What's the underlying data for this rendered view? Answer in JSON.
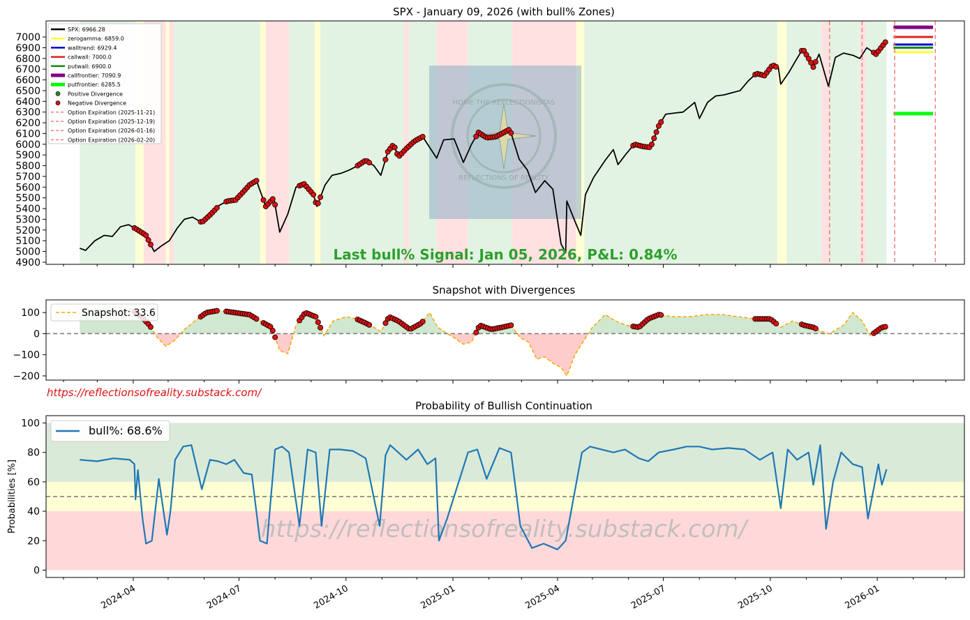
{
  "chart_data": [
    {
      "id": "spx",
      "type": "line",
      "title": "SPX - January 09, 2026 (with bull% Zones)",
      "ylim": [
        4880,
        7150
      ],
      "y_ticks": [
        4900,
        5000,
        5100,
        5200,
        5300,
        5400,
        5500,
        5600,
        5700,
        5800,
        5900,
        6000,
        6100,
        6200,
        6300,
        6400,
        6500,
        6600,
        6700,
        6800,
        6900,
        7000
      ],
      "series": [
        {
          "name": "SPX:  6966.28",
          "color": "#000000",
          "x": [
            "2024-02-15",
            "2024-02-20",
            "2024-02-28",
            "2024-03-07",
            "2024-03-14",
            "2024-03-21",
            "2024-03-28",
            "2024-04-05",
            "2024-04-12",
            "2024-04-19",
            "2024-04-25",
            "2024-05-02",
            "2024-05-09",
            "2024-05-15",
            "2024-05-22",
            "2024-05-30",
            "2024-06-07",
            "2024-06-14",
            "2024-06-21",
            "2024-06-28",
            "2024-07-05",
            "2024-07-10",
            "2024-07-16",
            "2024-07-24",
            "2024-07-31",
            "2024-08-05",
            "2024-08-12",
            "2024-08-19",
            "2024-08-26",
            "2024-09-03",
            "2024-09-06",
            "2024-09-13",
            "2024-09-19",
            "2024-09-27",
            "2024-10-04",
            "2024-10-11",
            "2024-10-18",
            "2024-10-25",
            "2024-10-31",
            "2024-11-06",
            "2024-11-11",
            "2024-11-15",
            "2024-11-22",
            "2024-11-29",
            "2024-12-06",
            "2024-12-18",
            "2024-12-24",
            "2025-01-02",
            "2025-01-10",
            "2025-01-17",
            "2025-01-23",
            "2025-01-30",
            "2025-02-07",
            "2025-02-19",
            "2025-02-27",
            "2025-03-06",
            "2025-03-13",
            "2025-03-21",
            "2025-03-28",
            "2025-04-04",
            "2025-04-08",
            "2025-04-09",
            "2025-04-16",
            "2025-04-21",
            "2025-04-25",
            "2025-05-02",
            "2025-05-12",
            "2025-05-19",
            "2025-05-23",
            "2025-05-30",
            "2025-06-06",
            "2025-06-13",
            "2025-06-20",
            "2025-06-27",
            "2025-07-03",
            "2025-07-10",
            "2025-07-18",
            "2025-07-28",
            "2025-08-01",
            "2025-08-08",
            "2025-08-15",
            "2025-08-22",
            "2025-08-29",
            "2025-09-05",
            "2025-09-12",
            "2025-09-19",
            "2025-09-26",
            "2025-10-03",
            "2025-10-08",
            "2025-10-10",
            "2025-10-17",
            "2025-10-24",
            "2025-10-29",
            "2025-11-04",
            "2025-11-07",
            "2025-11-12",
            "2025-11-20",
            "2025-11-26",
            "2025-12-03",
            "2025-12-11",
            "2025-12-17",
            "2025-12-23",
            "2025-12-31",
            "2026-01-05",
            "2026-01-09"
          ],
          "y": [
            5030,
            5010,
            5100,
            5150,
            5140,
            5230,
            5250,
            5200,
            5150,
            5000,
            5050,
            5100,
            5220,
            5300,
            5320,
            5270,
            5350,
            5430,
            5470,
            5480,
            5560,
            5620,
            5660,
            5420,
            5500,
            5180,
            5350,
            5600,
            5630,
            5530,
            5420,
            5620,
            5710,
            5730,
            5760,
            5800,
            5850,
            5800,
            5710,
            5930,
            6000,
            5880,
            5960,
            6030,
            6070,
            5870,
            6040,
            6050,
            5830,
            6000,
            6110,
            6060,
            6070,
            6140,
            5860,
            5760,
            5550,
            5660,
            5580,
            5070,
            4990,
            5470,
            5280,
            5150,
            5530,
            5690,
            5850,
            5950,
            5810,
            5910,
            6000,
            5980,
            5970,
            6170,
            6280,
            6290,
            6300,
            6390,
            6240,
            6390,
            6450,
            6460,
            6480,
            6500,
            6590,
            6660,
            6640,
            6740,
            6710,
            6560,
            6670,
            6800,
            6890,
            6780,
            6720,
            6840,
            6540,
            6810,
            6850,
            6830,
            6800,
            6900,
            6840,
            6910,
            6966
          ]
        },
        {
          "name": "zerogamma: 6859.0",
          "color": "#ffff33",
          "value": 6859.0
        },
        {
          "name": "walltrend: 6929.4",
          "color": "#0000cc",
          "value": 6929.4
        },
        {
          "name": "callwall: 7000.0",
          "color": "#dd2222",
          "value": 7000.0
        },
        {
          "name": "putwall: 6900.0",
          "color": "#118811",
          "value": 6900.0
        },
        {
          "name": "callfrontier: 7090.9",
          "color": "#800080",
          "value": 7090.9
        },
        {
          "name": "putfrontier: 6285.5",
          "color": "#00ff00",
          "value": 6285.5
        },
        {
          "name": "Positive Divergence",
          "color": "#2e8b2e"
        },
        {
          "name": "Negative Divergence",
          "color": "#dd1111"
        },
        {
          "name": "Option Expiration (2025-11-21)",
          "color": "#f08080",
          "x": "2025-11-21"
        },
        {
          "name": "Option Expiration (2025-12-19)",
          "color": "#f08080",
          "x": "2025-12-19"
        },
        {
          "name": "Option Expiration (2026-01-16)",
          "color": "#f08080",
          "x": "2026-01-16"
        },
        {
          "name": "Option Expiration (2026-02-20)",
          "color": "#f08080",
          "x": "2026-02-20"
        }
      ],
      "negative_divergence_ranges": [
        [
          "2024-04-02",
          "2024-04-16"
        ],
        [
          "2024-05-29",
          "2024-06-12"
        ],
        [
          "2024-06-20",
          "2024-07-17"
        ],
        [
          "2024-07-22",
          "2024-08-01"
        ],
        [
          "2024-08-22",
          "2024-09-09"
        ],
        [
          "2024-10-11",
          "2024-10-22"
        ],
        [
          "2024-11-04",
          "2024-12-06"
        ],
        [
          "2025-01-21",
          "2025-02-21"
        ],
        [
          "2025-06-05",
          "2025-06-30"
        ],
        [
          "2025-09-18",
          "2025-10-07"
        ],
        [
          "2025-10-28",
          "2025-11-10"
        ],
        [
          "2025-12-29",
          "2026-01-09"
        ]
      ],
      "zones": [
        {
          "from": "2024-02-15",
          "to": "2024-04-03",
          "color": "green"
        },
        {
          "from": "2024-04-03",
          "to": "2024-04-10",
          "color": "yellow"
        },
        {
          "from": "2024-04-10",
          "to": "2024-04-29",
          "color": "red"
        },
        {
          "from": "2024-04-29",
          "to": "2024-05-02",
          "color": "yellow"
        },
        {
          "from": "2024-05-02",
          "to": "2024-05-06",
          "color": "red"
        },
        {
          "from": "2024-05-06",
          "to": "2024-07-19",
          "color": "green"
        },
        {
          "from": "2024-07-19",
          "to": "2024-07-24",
          "color": "yellow"
        },
        {
          "from": "2024-07-24",
          "to": "2024-08-13",
          "color": "red"
        },
        {
          "from": "2024-08-13",
          "to": "2024-09-04",
          "color": "green"
        },
        {
          "from": "2024-09-04",
          "to": "2024-09-09",
          "color": "yellow"
        },
        {
          "from": "2024-09-09",
          "to": "2024-11-20",
          "color": "green"
        },
        {
          "from": "2024-11-20",
          "to": "2024-11-24",
          "color": "red"
        },
        {
          "from": "2024-11-24",
          "to": "2024-12-18",
          "color": "green"
        },
        {
          "from": "2024-12-18",
          "to": "2025-01-14",
          "color": "red"
        },
        {
          "from": "2025-01-14",
          "to": "2025-02-21",
          "color": "green"
        },
        {
          "from": "2025-02-21",
          "to": "2025-04-17",
          "color": "red"
        },
        {
          "from": "2025-04-17",
          "to": "2025-04-24",
          "color": "yellow"
        },
        {
          "from": "2025-04-24",
          "to": "2025-10-07",
          "color": "green"
        },
        {
          "from": "2025-10-07",
          "to": "2025-10-15",
          "color": "yellow"
        },
        {
          "from": "2025-10-15",
          "to": "2025-11-14",
          "color": "green"
        },
        {
          "from": "2025-11-14",
          "to": "2025-11-21",
          "color": "red"
        },
        {
          "from": "2025-11-21",
          "to": "2025-12-17",
          "color": "green"
        },
        {
          "from": "2025-12-17",
          "to": "2025-12-22",
          "color": "red"
        },
        {
          "from": "2025-12-22",
          "to": "2026-01-09",
          "color": "green"
        }
      ],
      "annotation": "Last bull% Signal: Jan 05, 2026, P&L: 0.84%",
      "legend": "top-left"
    },
    {
      "id": "snapshot",
      "type": "area",
      "title": "Snapshot with Divergences",
      "ylim": [
        -220,
        160
      ],
      "y_ticks": [
        -200,
        -100,
        0,
        100
      ],
      "series": [
        {
          "name": "Snapshot: 33.6",
          "color": "#ffa500",
          "x": [
            "2024-02-15",
            "2024-03-01",
            "2024-03-15",
            "2024-03-29",
            "2024-04-08",
            "2024-04-15",
            "2024-04-22",
            "2024-04-29",
            "2024-05-07",
            "2024-05-15",
            "2024-05-24",
            "2024-06-03",
            "2024-06-14",
            "2024-06-27",
            "2024-07-10",
            "2024-07-19",
            "2024-07-29",
            "2024-08-05",
            "2024-08-12",
            "2024-08-19",
            "2024-08-27",
            "2024-09-05",
            "2024-09-12",
            "2024-09-20",
            "2024-10-01",
            "2024-10-10",
            "2024-10-18",
            "2024-10-25",
            "2024-10-31",
            "2024-11-07",
            "2024-11-15",
            "2024-11-25",
            "2024-12-05",
            "2024-12-12",
            "2024-12-19",
            "2025-01-02",
            "2025-01-10",
            "2025-01-17",
            "2025-01-24",
            "2025-02-03",
            "2025-02-12",
            "2025-02-20",
            "2025-02-28",
            "2025-03-07",
            "2025-03-14",
            "2025-03-21",
            "2025-03-28",
            "2025-04-04",
            "2025-04-09",
            "2025-04-16",
            "2025-04-24",
            "2025-05-01",
            "2025-05-12",
            "2025-05-21",
            "2025-05-30",
            "2025-06-10",
            "2025-06-18",
            "2025-06-27",
            "2025-07-10",
            "2025-07-24",
            "2025-08-07",
            "2025-08-21",
            "2025-09-04",
            "2025-09-18",
            "2025-10-01",
            "2025-10-10",
            "2025-10-20",
            "2025-10-30",
            "2025-11-07",
            "2025-11-14",
            "2025-11-21",
            "2025-12-03",
            "2025-12-11",
            "2025-12-19",
            "2025-12-26",
            "2026-01-05",
            "2026-01-09"
          ],
          "y": [
            100,
            115,
            130,
            120,
            80,
            40,
            -20,
            -60,
            -30,
            20,
            60,
            100,
            110,
            100,
            90,
            60,
            30,
            -80,
            -95,
            40,
            100,
            80,
            -10,
            60,
            80,
            70,
            50,
            30,
            10,
            80,
            60,
            20,
            50,
            100,
            30,
            -20,
            -50,
            -40,
            40,
            20,
            30,
            40,
            -20,
            -40,
            -120,
            -110,
            -140,
            -160,
            -200,
            -100,
            -30,
            30,
            90,
            60,
            40,
            30,
            70,
            90,
            80,
            80,
            90,
            90,
            80,
            70,
            70,
            30,
            60,
            40,
            30,
            10,
            0,
            40,
            100,
            60,
            -10,
            30,
            33.6
          ]
        }
      ],
      "negative_divergence_ranges": [
        [
          "2024-04-02",
          "2024-04-16"
        ],
        [
          "2024-05-29",
          "2024-06-12"
        ],
        [
          "2024-06-20",
          "2024-07-17"
        ],
        [
          "2024-07-22",
          "2024-08-01"
        ],
        [
          "2024-08-22",
          "2024-09-09"
        ],
        [
          "2024-10-11",
          "2024-10-22"
        ],
        [
          "2024-11-04",
          "2024-12-06"
        ],
        [
          "2025-01-21",
          "2025-02-21"
        ],
        [
          "2025-06-05",
          "2025-06-30"
        ],
        [
          "2025-09-18",
          "2025-10-07"
        ],
        [
          "2025-10-28",
          "2025-11-10"
        ],
        [
          "2025-12-29",
          "2026-01-09"
        ]
      ],
      "legend": "top-left"
    },
    {
      "id": "bull",
      "type": "line",
      "title": "Probability of Bullish Continuation",
      "ylabel": "Probabilities [%]",
      "ylim": [
        -5,
        105
      ],
      "y_ticks": [
        0,
        20,
        40,
        60,
        80,
        100
      ],
      "x_ticks": [
        "2024-04",
        "2024-07",
        "2024-10",
        "2025-01",
        "2025-04",
        "2025-07",
        "2025-10",
        "2026-01"
      ],
      "bands": [
        {
          "from": 60,
          "to": 100,
          "color": "#d9ead9"
        },
        {
          "from": 40,
          "to": 60,
          "color": "#ffffd6"
        },
        {
          "from": 0,
          "to": 40,
          "color": "#ffd9da"
        }
      ],
      "threshold": 50,
      "series": [
        {
          "name": "bull%: 68.6%",
          "color": "#1f77b4",
          "x": [
            "2024-02-15",
            "2024-03-01",
            "2024-03-15",
            "2024-03-29",
            "2024-04-02",
            "2024-04-03",
            "2024-04-05",
            "2024-04-09",
            "2024-04-12",
            "2024-04-17",
            "2024-04-23",
            "2024-04-30",
            "2024-05-03",
            "2024-05-07",
            "2024-05-14",
            "2024-05-21",
            "2024-05-30",
            "2024-06-06",
            "2024-06-13",
            "2024-06-20",
            "2024-06-27",
            "2024-07-05",
            "2024-07-12",
            "2024-07-19",
            "2024-07-25",
            "2024-08-01",
            "2024-08-07",
            "2024-08-13",
            "2024-08-22",
            "2024-08-29",
            "2024-09-05",
            "2024-09-10",
            "2024-09-17",
            "2024-09-26",
            "2024-10-07",
            "2024-10-18",
            "2024-10-30",
            "2024-11-04",
            "2024-11-08",
            "2024-11-15",
            "2024-11-22",
            "2024-12-02",
            "2024-12-10",
            "2024-12-17",
            "2024-12-20",
            "2024-12-27",
            "2025-01-08",
            "2025-01-14",
            "2025-01-22",
            "2025-01-30",
            "2025-02-10",
            "2025-02-20",
            "2025-02-28",
            "2025-03-10",
            "2025-03-20",
            "2025-04-01",
            "2025-04-08",
            "2025-04-15",
            "2025-04-22",
            "2025-04-29",
            "2025-05-09",
            "2025-05-19",
            "2025-05-29",
            "2025-06-10",
            "2025-06-18",
            "2025-06-27",
            "2025-07-10",
            "2025-07-21",
            "2025-08-01",
            "2025-08-12",
            "2025-08-26",
            "2025-09-09",
            "2025-09-22",
            "2025-10-03",
            "2025-10-10",
            "2025-10-16",
            "2025-10-24",
            "2025-11-03",
            "2025-11-07",
            "2025-11-13",
            "2025-11-18",
            "2025-11-24",
            "2025-12-01",
            "2025-12-11",
            "2025-12-19",
            "2025-12-24",
            "2026-01-02",
            "2026-01-05",
            "2026-01-09"
          ],
          "y": [
            75,
            74,
            76,
            75,
            72,
            48,
            68,
            35,
            18,
            20,
            62,
            24,
            40,
            75,
            84,
            85,
            55,
            75,
            74,
            72,
            75,
            66,
            65,
            20,
            18,
            82,
            84,
            80,
            30,
            82,
            80,
            30,
            82,
            82,
            81,
            76,
            30,
            78,
            85,
            80,
            75,
            82,
            72,
            76,
            20,
            35,
            65,
            80,
            82,
            62,
            83,
            80,
            30,
            15,
            18,
            14,
            20,
            50,
            80,
            84,
            82,
            80,
            82,
            76,
            74,
            80,
            82,
            84,
            84,
            82,
            83,
            82,
            75,
            80,
            42,
            82,
            75,
            80,
            58,
            85,
            28,
            60,
            80,
            72,
            70,
            35,
            72,
            58,
            68.6
          ]
        }
      ],
      "legend": "top-left"
    }
  ],
  "watermark_url": "https://reflectionsofreality.substack.com/",
  "watermark_big": "https://reflectionsofreality.substack.com/",
  "logo_text": [
    "HOME THE REFLECTIONISTAS",
    "REFLECTIONS OF REALITY"
  ]
}
